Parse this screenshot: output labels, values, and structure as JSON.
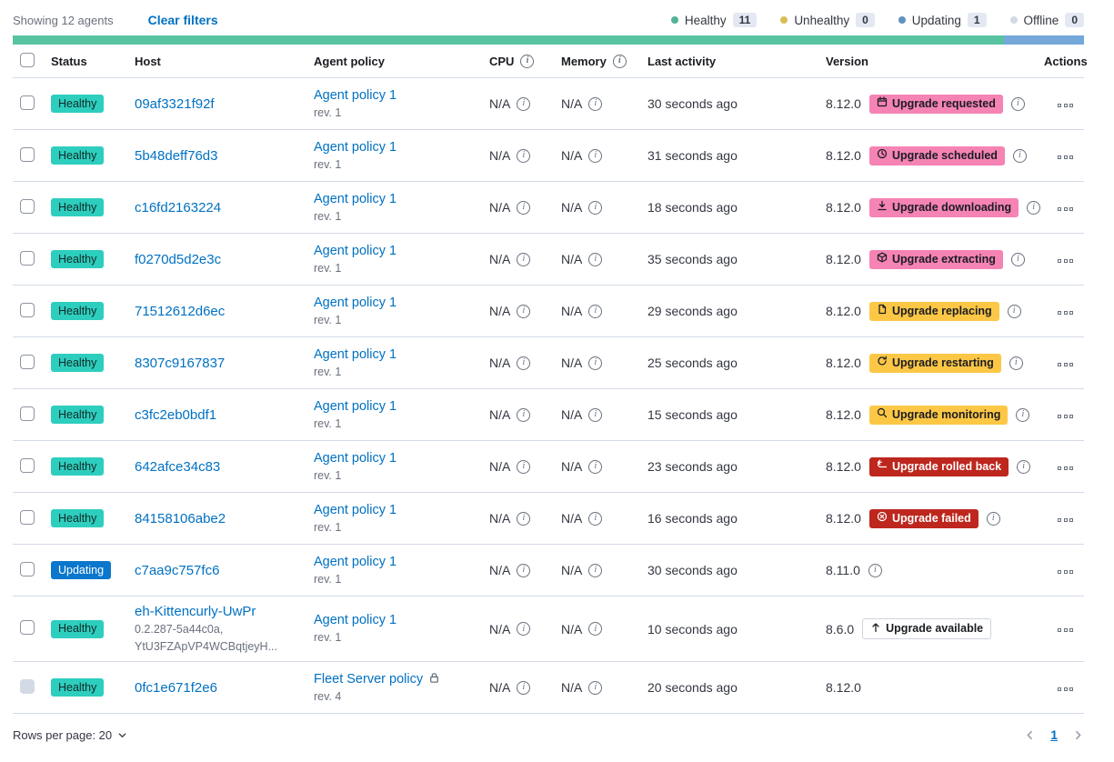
{
  "toolbar": {
    "showing": "Showing 12 agents",
    "clear_filters": "Clear filters",
    "legend": [
      {
        "label": "Healthy",
        "count": "11",
        "color": "#54b399"
      },
      {
        "label": "Unhealthy",
        "count": "0",
        "color": "#d6bf57"
      },
      {
        "label": "Updating",
        "count": "1",
        "color": "#6092c0"
      },
      {
        "label": "Offline",
        "count": "0",
        "color": "#d3dae6"
      }
    ],
    "status_bar_segments": [
      {
        "status": "healthy",
        "color": "#57c3a1",
        "width_pct": 92.5
      },
      {
        "status": "updating",
        "color": "#74a8d8",
        "width_pct": 7.5
      }
    ]
  },
  "table": {
    "headers": {
      "status": "Status",
      "host": "Host",
      "policy": "Agent policy",
      "cpu": "CPU",
      "memory": "Memory",
      "last_activity": "Last activity",
      "version": "Version",
      "actions": "Actions"
    },
    "rows": [
      {
        "status": "Healthy",
        "variant": "healthy",
        "host": "09af3321f92f",
        "host_sub": [],
        "policy": "Agent policy 1",
        "policy_rev": "rev. 1",
        "policy_locked": false,
        "cpu": "N/A",
        "memory": "N/A",
        "last_activity": "30 seconds ago",
        "version": "8.12.0",
        "upgrade": {
          "label": "Upgrade requested",
          "variant": "pink",
          "icon": "calendar-icon"
        },
        "version_info": true,
        "checkbox_disabled": false
      },
      {
        "status": "Healthy",
        "variant": "healthy",
        "host": "5b48deff76d3",
        "host_sub": [],
        "policy": "Agent policy 1",
        "policy_rev": "rev. 1",
        "policy_locked": false,
        "cpu": "N/A",
        "memory": "N/A",
        "last_activity": "31 seconds ago",
        "version": "8.12.0",
        "upgrade": {
          "label": "Upgrade scheduled",
          "variant": "pink",
          "icon": "clock-icon"
        },
        "version_info": true,
        "checkbox_disabled": false
      },
      {
        "status": "Healthy",
        "variant": "healthy",
        "host": "c16fd2163224",
        "host_sub": [],
        "policy": "Agent policy 1",
        "policy_rev": "rev. 1",
        "policy_locked": false,
        "cpu": "N/A",
        "memory": "N/A",
        "last_activity": "18 seconds ago",
        "version": "8.12.0",
        "upgrade": {
          "label": "Upgrade downloading",
          "variant": "pink",
          "icon": "download-icon"
        },
        "version_info": true,
        "checkbox_disabled": false
      },
      {
        "status": "Healthy",
        "variant": "healthy",
        "host": "f0270d5d2e3c",
        "host_sub": [],
        "policy": "Agent policy 1",
        "policy_rev": "rev. 1",
        "policy_locked": false,
        "cpu": "N/A",
        "memory": "N/A",
        "last_activity": "35 seconds ago",
        "version": "8.12.0",
        "upgrade": {
          "label": "Upgrade extracting",
          "variant": "pink",
          "icon": "package-icon"
        },
        "version_info": true,
        "checkbox_disabled": false
      },
      {
        "status": "Healthy",
        "variant": "healthy",
        "host": "71512612d6ec",
        "host_sub": [],
        "policy": "Agent policy 1",
        "policy_rev": "rev. 1",
        "policy_locked": false,
        "cpu": "N/A",
        "memory": "N/A",
        "last_activity": "29 seconds ago",
        "version": "8.12.0",
        "upgrade": {
          "label": "Upgrade replacing",
          "variant": "yellow",
          "icon": "document-icon"
        },
        "version_info": true,
        "checkbox_disabled": false
      },
      {
        "status": "Healthy",
        "variant": "healthy",
        "host": "8307c9167837",
        "host_sub": [],
        "policy": "Agent policy 1",
        "policy_rev": "rev. 1",
        "policy_locked": false,
        "cpu": "N/A",
        "memory": "N/A",
        "last_activity": "25 seconds ago",
        "version": "8.12.0",
        "upgrade": {
          "label": "Upgrade restarting",
          "variant": "yellow",
          "icon": "refresh-icon"
        },
        "version_info": true,
        "checkbox_disabled": false
      },
      {
        "status": "Healthy",
        "variant": "healthy",
        "host": "c3fc2eb0bdf1",
        "host_sub": [],
        "policy": "Agent policy 1",
        "policy_rev": "rev. 1",
        "policy_locked": false,
        "cpu": "N/A",
        "memory": "N/A",
        "last_activity": "15 seconds ago",
        "version": "8.12.0",
        "upgrade": {
          "label": "Upgrade monitoring",
          "variant": "yellow",
          "icon": "inspect-icon"
        },
        "version_info": true,
        "checkbox_disabled": false
      },
      {
        "status": "Healthy",
        "variant": "healthy",
        "host": "642afce34c83",
        "host_sub": [],
        "policy": "Agent policy 1",
        "policy_rev": "rev. 1",
        "policy_locked": false,
        "cpu": "N/A",
        "memory": "N/A",
        "last_activity": "23 seconds ago",
        "version": "8.12.0",
        "upgrade": {
          "label": "Upgrade rolled back",
          "variant": "red",
          "icon": "return-arrow-icon"
        },
        "version_info": true,
        "checkbox_disabled": false
      },
      {
        "status": "Healthy",
        "variant": "healthy",
        "host": "84158106abe2",
        "host_sub": [],
        "policy": "Agent policy 1",
        "policy_rev": "rev. 1",
        "policy_locked": false,
        "cpu": "N/A",
        "memory": "N/A",
        "last_activity": "16 seconds ago",
        "version": "8.12.0",
        "upgrade": {
          "label": "Upgrade failed",
          "variant": "red",
          "icon": "cross-circle-icon"
        },
        "version_info": true,
        "checkbox_disabled": false
      },
      {
        "status": "Updating",
        "variant": "updating",
        "host": "c7aa9c757fc6",
        "host_sub": [],
        "policy": "Agent policy 1",
        "policy_rev": "rev. 1",
        "policy_locked": false,
        "cpu": "N/A",
        "memory": "N/A",
        "last_activity": "30 seconds ago",
        "version": "8.11.0",
        "upgrade": null,
        "version_info": true,
        "checkbox_disabled": false
      },
      {
        "status": "Healthy",
        "variant": "healthy",
        "host": "eh-Kittencurly-UwPr",
        "host_sub": [
          "0.2.287-5a44c0a,",
          "YtU3FZApVP4WCBqtjeyH..."
        ],
        "policy": "Agent policy 1",
        "policy_rev": "rev. 1",
        "policy_locked": false,
        "cpu": "N/A",
        "memory": "N/A",
        "last_activity": "10 seconds ago",
        "version": "8.6.0",
        "upgrade": {
          "label": "Upgrade available",
          "variant": "hollow",
          "icon": "arrow-up-icon"
        },
        "version_info": false,
        "checkbox_disabled": false
      },
      {
        "status": "Healthy",
        "variant": "healthy",
        "host": "0fc1e671f2e6",
        "host_sub": [],
        "policy": "Fleet Server policy",
        "policy_rev": "rev. 4",
        "policy_locked": true,
        "cpu": "N/A",
        "memory": "N/A",
        "last_activity": "20 seconds ago",
        "version": "8.12.0",
        "upgrade": null,
        "version_info": false,
        "checkbox_disabled": true
      }
    ]
  },
  "footer": {
    "rows_per_page_label": "Rows per page: 20",
    "page": "1"
  },
  "theme": {
    "link_blue": "#0071c2",
    "healthy_teal": "#2dcebe",
    "updating_blue": "#0b77cc",
    "accent_pink": "#f583b4",
    "warning_yellow": "#fdc746",
    "danger_red": "#bd271e",
    "text": "#343741",
    "subdued": "#69707d",
    "border": "#d3dae6"
  }
}
